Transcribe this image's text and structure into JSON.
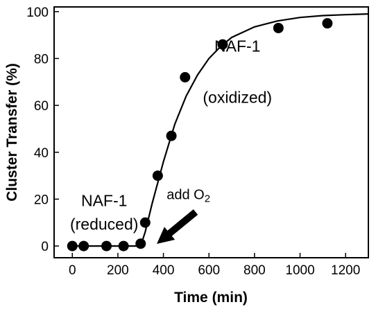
{
  "chart_data": {
    "type": "scatter",
    "title": "",
    "xlabel": "Time (min)",
    "ylabel": "Cluster Transfer (%)",
    "xlim": [
      -80,
      1300
    ],
    "ylim": [
      -5,
      102
    ],
    "xticks": [
      0,
      200,
      400,
      600,
      800,
      1000,
      1200
    ],
    "yticks": [
      0,
      20,
      40,
      60,
      80,
      100
    ],
    "grid": false,
    "legend": "none",
    "marker_color": "#000000",
    "series": [
      {
        "values": [
          {
            "x": 0,
            "y": 0
          },
          {
            "x": 50,
            "y": 0
          },
          {
            "x": 150,
            "y": 0
          },
          {
            "x": 225,
            "y": 0
          },
          {
            "x": 300,
            "y": 1
          },
          {
            "x": 320,
            "y": 10
          },
          {
            "x": 375,
            "y": 30
          },
          {
            "x": 435,
            "y": 47
          },
          {
            "x": 495,
            "y": 72
          },
          {
            "x": 660,
            "y": 86
          },
          {
            "x": 905,
            "y": 93
          },
          {
            "x": 1120,
            "y": 95
          }
        ]
      }
    ],
    "fit_curve": {
      "points": [
        {
          "x": 0,
          "y": 0
        },
        {
          "x": 300,
          "y": 0
        },
        {
          "x": 320,
          "y": 6
        },
        {
          "x": 350,
          "y": 18
        },
        {
          "x": 400,
          "y": 36
        },
        {
          "x": 450,
          "y": 52
        },
        {
          "x": 500,
          "y": 64
        },
        {
          "x": 550,
          "y": 73
        },
        {
          "x": 600,
          "y": 80
        },
        {
          "x": 650,
          "y": 85
        },
        {
          "x": 700,
          "y": 89
        },
        {
          "x": 800,
          "y": 93.5
        },
        {
          "x": 900,
          "y": 96
        },
        {
          "x": 1000,
          "y": 97.5
        },
        {
          "x": 1100,
          "y": 98.3
        },
        {
          "x": 1200,
          "y": 98.7
        },
        {
          "x": 1300,
          "y": 99
        }
      ]
    },
    "annotations": [
      {
        "name": "label-oxidized-line1",
        "text": "NAF-1",
        "x": 725,
        "y": 83
      },
      {
        "name": "label-oxidized-line2",
        "text": "(oxidized)",
        "x": 725,
        "y": 61
      },
      {
        "name": "label-reduced-line1",
        "text": "NAF-1",
        "x": 140,
        "y": 17
      },
      {
        "name": "label-reduced-line2",
        "text": "(reduced)",
        "x": 140,
        "y": 7
      },
      {
        "name": "label-add-o2",
        "text": "add O",
        "subscript": "2",
        "x": 510,
        "y": 20
      }
    ]
  }
}
